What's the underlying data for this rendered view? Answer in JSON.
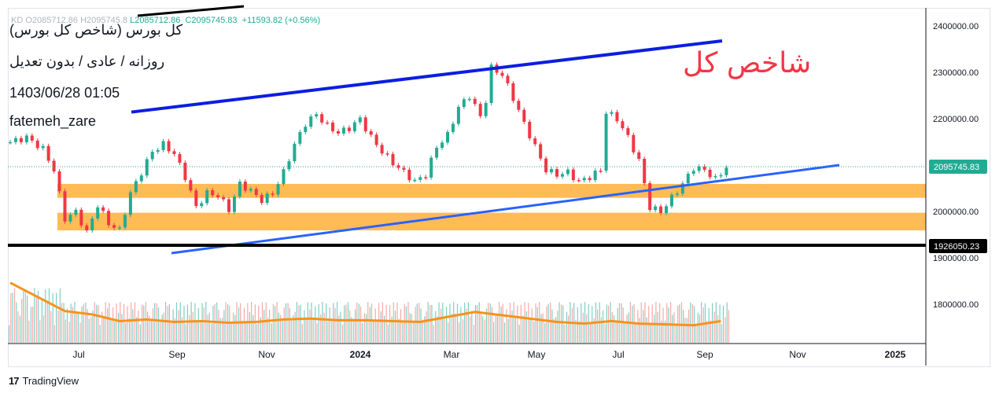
{
  "header": {
    "title": "کل بورس (شاخص کل بورس)",
    "subtitle": "روزانه / عادی / بدون تعدیل",
    "datetime": "1403/06/28 01:05",
    "author": "fatemeh_zare"
  },
  "ohlc": {
    "hidden_prefix": "KD  O2085712.86  H2095745.8",
    "low": "L2085712.86",
    "close": "C2095745.83",
    "change": "+11593.82 (+0.56%)"
  },
  "annotation": "شاخص کل",
  "branding": {
    "logo_mark": "17",
    "name": "TradingView"
  },
  "colors": {
    "up": "#22ab94",
    "down": "#f23645",
    "zone": "#ffb74d",
    "channel_upper": "#0b1ee0",
    "trend": "#2962ff",
    "support": "#000000",
    "ma": "#f7931a",
    "price_label_bg": "#22ab94"
  },
  "chart_data": {
    "type": "candlestick",
    "y_axis": {
      "ticks": [
        "2400000.00",
        "2300000.00",
        "2200000.00",
        "2100000.00",
        "2000000.00",
        "1900000.00",
        "1800000.00"
      ],
      "current_price_label": "2095745.83",
      "support_label": "1926050.23",
      "scale": "log"
    },
    "x_axis": {
      "ticks": [
        "Jul",
        "Sep",
        "Nov",
        "2024",
        "Mar",
        "May",
        "Jul",
        "Sep",
        "Nov",
        "2025"
      ]
    },
    "price_path": [
      [
        0,
        2150000
      ],
      [
        3,
        2160000
      ],
      [
        6,
        2135000
      ],
      [
        8,
        2090000
      ],
      [
        10,
        1985000
      ],
      [
        12,
        2000000
      ],
      [
        14,
        1955000
      ],
      [
        16,
        2015000
      ],
      [
        18,
        1975000
      ],
      [
        20,
        1960000
      ],
      [
        22,
        2040000
      ],
      [
        24,
        2085000
      ],
      [
        26,
        2130000
      ],
      [
        28,
        2145000
      ],
      [
        30,
        2125000
      ],
      [
        32,
        2075000
      ],
      [
        34,
        2010000
      ],
      [
        36,
        2040000
      ],
      [
        38,
        2035000
      ],
      [
        40,
        2005000
      ],
      [
        42,
        2060000
      ],
      [
        44,
        2045000
      ],
      [
        46,
        2025000
      ],
      [
        48,
        2040000
      ],
      [
        50,
        2085000
      ],
      [
        52,
        2145000
      ],
      [
        54,
        2190000
      ],
      [
        56,
        2210000
      ],
      [
        58,
        2185000
      ],
      [
        60,
        2170000
      ],
      [
        62,
        2180000
      ],
      [
        64,
        2200000
      ],
      [
        66,
        2160000
      ],
      [
        68,
        2130000
      ],
      [
        70,
        2105000
      ],
      [
        72,
        2085000
      ],
      [
        74,
        2065000
      ],
      [
        76,
        2080000
      ],
      [
        78,
        2140000
      ],
      [
        80,
        2165000
      ],
      [
        82,
        2225000
      ],
      [
        84,
        2250000
      ],
      [
        86,
        2205000
      ],
      [
        87,
        2240000
      ],
      [
        88,
        2310000
      ],
      [
        90,
        2295000
      ],
      [
        92,
        2245000
      ],
      [
        94,
        2190000
      ],
      [
        96,
        2140000
      ],
      [
        98,
        2090000
      ],
      [
        100,
        2080000
      ],
      [
        102,
        2085000
      ],
      [
        104,
        2065000
      ],
      [
        106,
        2075000
      ],
      [
        108,
        2090000
      ],
      [
        109,
        2215000
      ],
      [
        111,
        2200000
      ],
      [
        113,
        2160000
      ],
      [
        115,
        2110000
      ],
      [
        117,
        2010000
      ],
      [
        119,
        2000000
      ],
      [
        121,
        2030000
      ],
      [
        123,
        2060000
      ],
      [
        125,
        2095000
      ],
      [
        127,
        2090000
      ],
      [
        129,
        2070000
      ],
      [
        131,
        2095000
      ]
    ],
    "trendlines": [
      {
        "name": "upper-channel",
        "points": [
          [
            10,
            2130000
          ],
          [
            133,
            2365000
          ]
        ]
      },
      {
        "name": "lower-trend",
        "points": [
          [
            15,
            1915000
          ],
          [
            149,
            2075000
          ]
        ]
      }
    ],
    "support_zones": [
      [
        2030000,
        2060000
      ],
      [
        1960000,
        1998000
      ]
    ],
    "support_line": 1926050.23,
    "volume": {
      "ma_path": [
        [
          0,
          0.72
        ],
        [
          5,
          0.55
        ],
        [
          10,
          0.38
        ],
        [
          15,
          0.34
        ],
        [
          20,
          0.26
        ],
        [
          25,
          0.28
        ],
        [
          30,
          0.25
        ],
        [
          35,
          0.26
        ],
        [
          40,
          0.24
        ],
        [
          45,
          0.25
        ],
        [
          50,
          0.28
        ],
        [
          55,
          0.29
        ],
        [
          60,
          0.27
        ],
        [
          65,
          0.27
        ],
        [
          70,
          0.26
        ],
        [
          75,
          0.25
        ],
        [
          80,
          0.31
        ],
        [
          85,
          0.37
        ],
        [
          90,
          0.33
        ],
        [
          95,
          0.29
        ],
        [
          100,
          0.25
        ],
        [
          105,
          0.23
        ],
        [
          110,
          0.26
        ],
        [
          115,
          0.23
        ],
        [
          120,
          0.22
        ],
        [
          125,
          0.21
        ],
        [
          130,
          0.26
        ]
      ]
    }
  }
}
